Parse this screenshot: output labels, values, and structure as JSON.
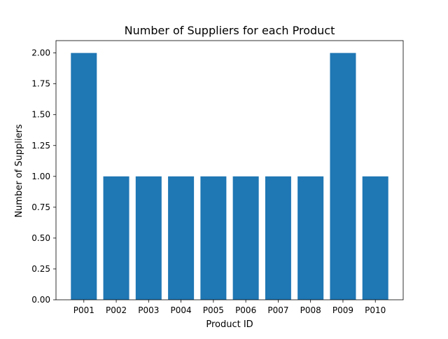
{
  "chart_data": {
    "type": "bar",
    "title": "Number of Suppliers for each Product",
    "xlabel": "Product ID",
    "ylabel": "Number of Suppliers",
    "categories": [
      "P001",
      "P002",
      "P003",
      "P004",
      "P005",
      "P006",
      "P007",
      "P008",
      "P009",
      "P010"
    ],
    "values": [
      2,
      1,
      1,
      1,
      1,
      1,
      1,
      1,
      2,
      1
    ],
    "ylim": [
      0,
      2.1
    ],
    "yticks": [
      "0.00",
      "0.25",
      "0.50",
      "0.75",
      "1.00",
      "1.25",
      "1.50",
      "1.75",
      "2.00"
    ],
    "grid": false,
    "colors": {
      "bar": "#1f77b4",
      "axes": "#000000",
      "background": "#ffffff"
    }
  }
}
